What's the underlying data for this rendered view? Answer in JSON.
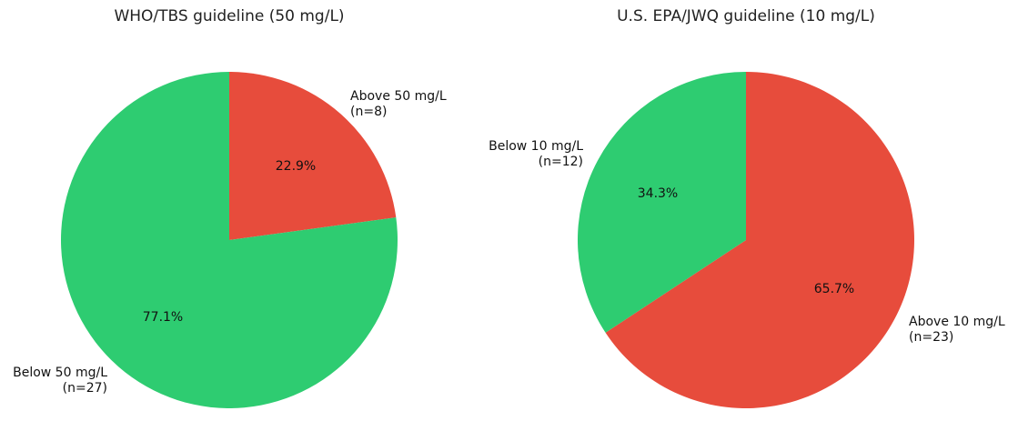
{
  "chart_data": [
    {
      "type": "pie",
      "title": "WHO/TBS guideline (50 mg/L)",
      "slices": [
        {
          "label": "Above 50 mg/L",
          "count_label": "(n=8)",
          "value": 8,
          "percent_label": "22.9%",
          "color": "#e74c3c"
        },
        {
          "label": "Below 50 mg/L",
          "count_label": "(n=27)",
          "value": 27,
          "percent_label": "77.1%",
          "color": "#2ecc71"
        }
      ]
    },
    {
      "type": "pie",
      "title": "U.S. EPA/JWQ guideline (10 mg/L)",
      "slices": [
        {
          "label": "Above 10 mg/L",
          "count_label": "(n=23)",
          "value": 23,
          "percent_label": "65.7%",
          "color": "#e74c3c"
        },
        {
          "label": "Below 10 mg/L",
          "count_label": "(n=12)",
          "value": 12,
          "percent_label": "34.3%",
          "color": "#2ecc71"
        }
      ]
    }
  ]
}
